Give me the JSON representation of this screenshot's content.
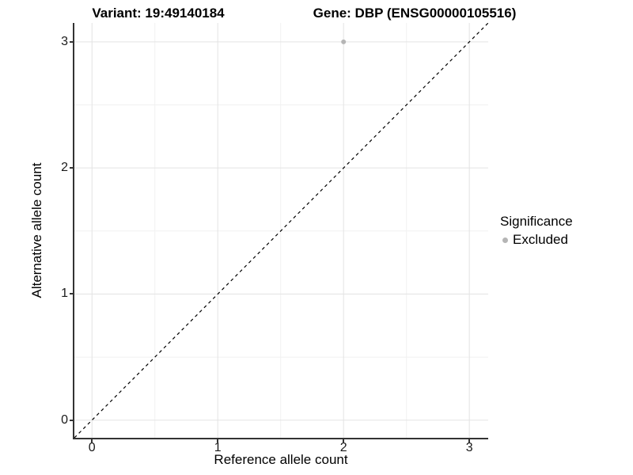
{
  "titles": {
    "variant": "Variant: 19:49140184",
    "gene": "Gene: DBP (ENSG00000105516)"
  },
  "chart_data": {
    "type": "scatter",
    "title": "Variant: 19:49140184   Gene: DBP (ENSG00000105516)",
    "xlabel": "Reference allele count",
    "ylabel": "Alternative allele count",
    "xlim": [
      -0.14,
      3.15
    ],
    "ylim": [
      -0.14,
      3.15
    ],
    "x_ticks": [
      0,
      1,
      2,
      3
    ],
    "y_ticks": [
      0,
      1,
      2,
      3
    ],
    "x_minor_ticks": [
      0.5,
      1.5,
      2.5
    ],
    "y_minor_ticks": [
      0.5,
      1.5,
      2.5
    ],
    "grid": true,
    "legend_position": "right",
    "series": [
      {
        "name": "Excluded",
        "color": "#b5b5b5",
        "points": [
          {
            "x": 2,
            "y": 3
          }
        ]
      }
    ],
    "reference_line": {
      "type": "identity",
      "equation": "y = x",
      "style": "dashed",
      "color": "#000000"
    },
    "legend": {
      "title": "Significance",
      "entries": [
        {
          "label": "Excluded",
          "color": "#b5b5b5"
        }
      ]
    }
  },
  "colors": {
    "background": "#ffffff",
    "axis_line": "#333333",
    "major_grid": "#e3e3e3",
    "minor_grid": "#f1f1f1",
    "tick_text": "#1a1a1a",
    "point": "#b5b5b5"
  }
}
